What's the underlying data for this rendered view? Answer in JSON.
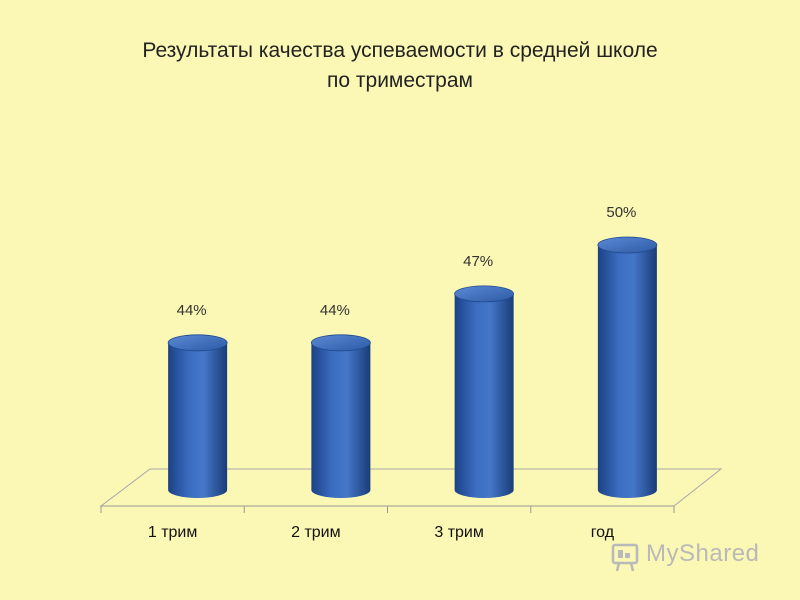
{
  "chart_data": {
    "type": "bar",
    "title_lines": [
      "Результаты качества успеваемости  в средней школе",
      "по триместрам"
    ],
    "categories": [
      "1 трим",
      "2 трим",
      "3 трим",
      "год"
    ],
    "values": [
      44,
      44,
      47,
      50
    ],
    "value_labels": [
      "44%",
      "44%",
      "47%",
      "50%"
    ],
    "ylim": [
      40,
      51
    ],
    "bar_style": "cylinder",
    "bar_color": "#2f5fae",
    "grid": false,
    "legend": "none"
  },
  "watermark": {
    "text": "MyShared"
  }
}
